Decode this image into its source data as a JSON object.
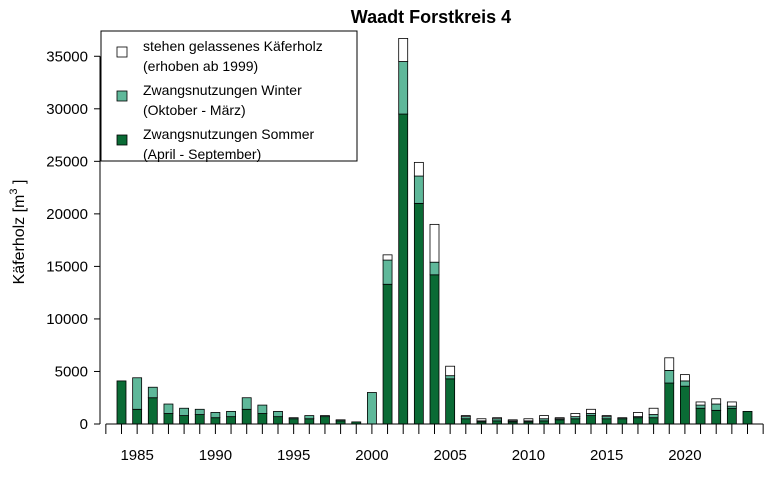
{
  "chart_data": {
    "type": "bar",
    "stacked": true,
    "title": "Waadt Forstkreis 4",
    "ylabel": "Käferholz",
    "ylabel_unit_base": "m",
    "ylabel_unit_exp": "3",
    "ylim": [
      0,
      37500
    ],
    "yticks": [
      0,
      5000,
      10000,
      15000,
      20000,
      25000,
      30000,
      35000
    ],
    "xlim": [
      1983,
      2025
    ],
    "xticks": [
      1985,
      1990,
      1995,
      2000,
      2005,
      2010,
      2015,
      2020
    ],
    "grid": false,
    "legend_position": "top-left",
    "legend": [
      {
        "key": "standing",
        "line1": "stehen gelassenes Käferholz",
        "line2": "(erhoben ab 1999)",
        "color": "#ffffff"
      },
      {
        "key": "winter",
        "line1": "Zwangsnutzungen Winter",
        "line2": "(Oktober - März)",
        "color": "#5fb89a"
      },
      {
        "key": "summer",
        "line1": "Zwangsnutzungen Sommer",
        "line2": "(April - September)",
        "color": "#0a6b35"
      }
    ],
    "x": [
      1984,
      1985,
      1986,
      1987,
      1988,
      1989,
      1990,
      1991,
      1992,
      1993,
      1994,
      1995,
      1996,
      1997,
      1998,
      1999,
      2000,
      2001,
      2002,
      2003,
      2004,
      2005,
      2006,
      2007,
      2008,
      2009,
      2010,
      2011,
      2012,
      2013,
      2014,
      2015,
      2016,
      2017,
      2018,
      2019,
      2020,
      2021,
      2022,
      2023,
      2024
    ],
    "series": [
      {
        "key": "summer",
        "values": [
          4100,
          1400,
          2500,
          1000,
          800,
          900,
          600,
          700,
          1400,
          1000,
          700,
          500,
          500,
          700,
          300,
          200,
          0,
          13300,
          29500,
          21000,
          14200,
          4300,
          500,
          200,
          300,
          200,
          200,
          300,
          400,
          500,
          800,
          500,
          500,
          600,
          600,
          3900,
          3600,
          1500,
          1300,
          1500,
          1200
        ]
      },
      {
        "key": "winter",
        "values": [
          0,
          3000,
          1000,
          900,
          700,
          500,
          500,
          500,
          1100,
          800,
          500,
          100,
          300,
          100,
          100,
          0,
          3000,
          2300,
          5000,
          2600,
          1200,
          300,
          200,
          100,
          200,
          100,
          100,
          200,
          100,
          200,
          200,
          200,
          100,
          100,
          300,
          1200,
          500,
          300,
          600,
          200,
          0
        ]
      },
      {
        "key": "standing",
        "values": [
          0,
          0,
          0,
          0,
          0,
          0,
          0,
          0,
          0,
          0,
          0,
          0,
          0,
          0,
          0,
          0,
          0,
          500,
          2200,
          1300,
          3600,
          900,
          100,
          200,
          100,
          100,
          200,
          300,
          100,
          300,
          400,
          100,
          0,
          400,
          600,
          1200,
          600,
          300,
          500,
          400,
          0
        ]
      }
    ]
  }
}
